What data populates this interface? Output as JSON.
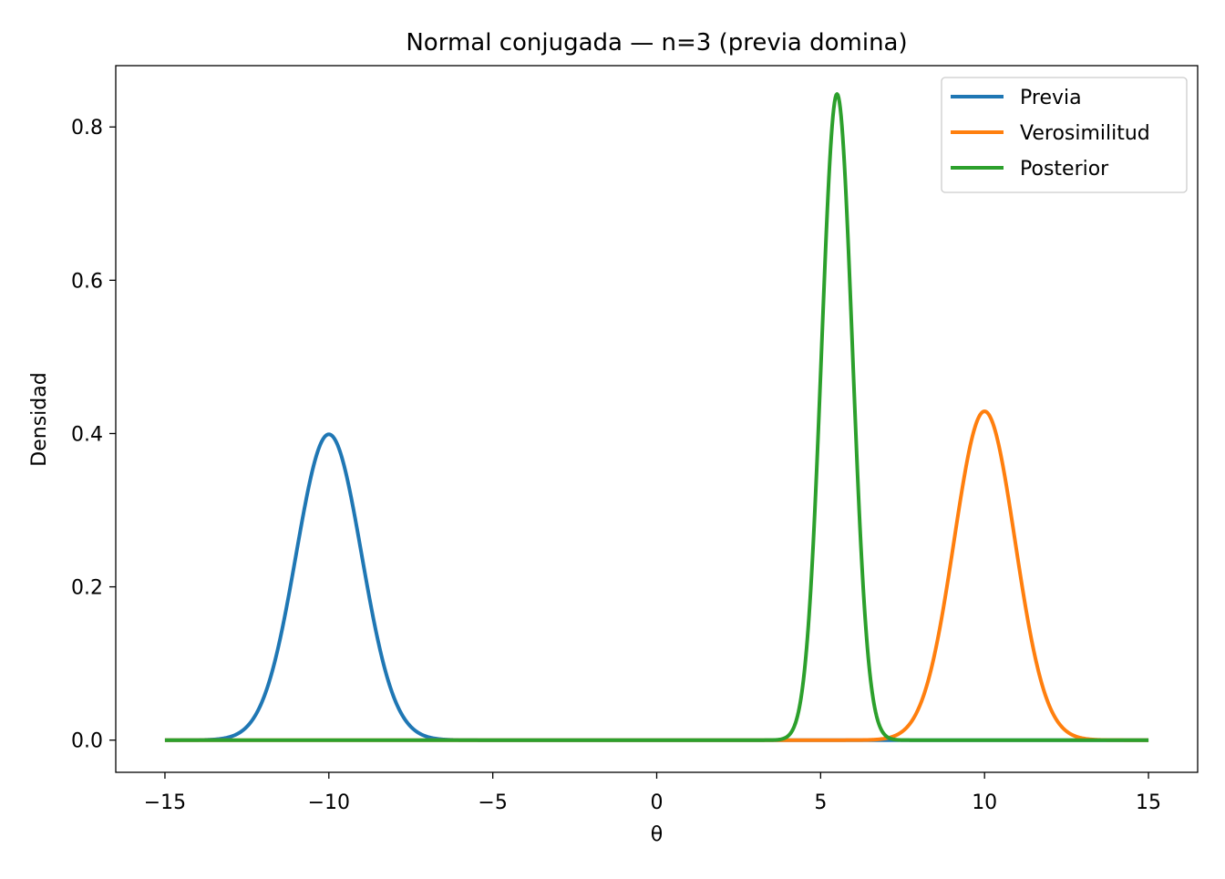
{
  "chart_data": {
    "type": "line",
    "title": "Normal conjugada — n=3 (previa domina)",
    "xlabel": "θ",
    "ylabel": "Densidad",
    "xlim": [
      -16.5,
      16.5
    ],
    "ylim": [
      -0.042,
      0.88
    ],
    "xticks": [
      -15,
      -10,
      -5,
      0,
      5,
      10,
      15
    ],
    "xtick_labels": [
      "−15",
      "−10",
      "−5",
      "0",
      "5",
      "10",
      "15"
    ],
    "yticks": [
      0.0,
      0.2,
      0.4,
      0.6,
      0.8
    ],
    "ytick_labels": [
      "0.0",
      "0.2",
      "0.4",
      "0.6",
      "0.8"
    ],
    "grid": false,
    "legend_position": "top-right",
    "x_range": [
      -15,
      15
    ],
    "series": [
      {
        "name": "Previa",
        "color": "#1f77b4",
        "distribution": "normal",
        "mean": -10.0,
        "sd": 1.0,
        "peak": 0.399
      },
      {
        "name": "Verosimilitud",
        "color": "#ff7f0e",
        "distribution": "normal",
        "mean": 10.0,
        "sd": 0.93,
        "peak": 0.429
      },
      {
        "name": "Posterior",
        "color": "#2ca02c",
        "distribution": "normal",
        "mean": 5.5,
        "sd": 0.47,
        "peak": 0.843
      }
    ]
  }
}
